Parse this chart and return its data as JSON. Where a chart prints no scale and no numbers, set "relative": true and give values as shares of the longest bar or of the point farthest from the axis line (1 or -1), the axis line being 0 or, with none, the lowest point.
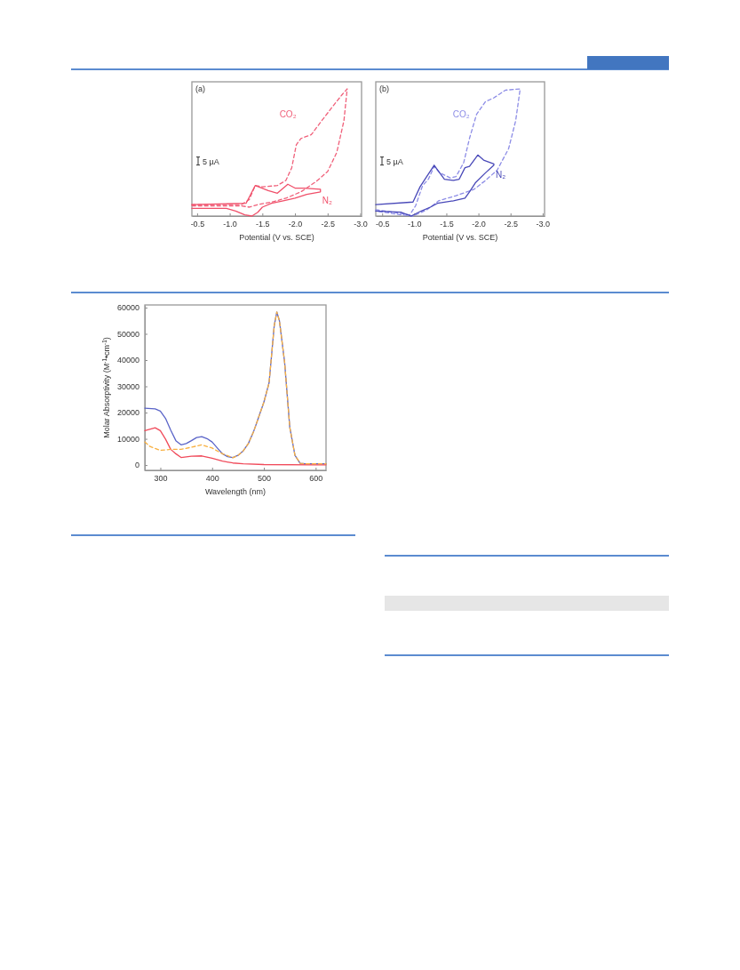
{
  "chart_data": [
    {
      "type": "line",
      "title": "(a)",
      "xlabel": "Potential (V vs. SCE)",
      "relative": true,
      "xlim": [
        -0.42,
        -3.02
      ],
      "xticks": [
        {
          "value": -0.5,
          "label": "-0.5"
        },
        {
          "value": -1,
          "label": "-1.0"
        },
        {
          "value": -1.5,
          "label": "-1.5"
        },
        {
          "value": -2,
          "label": "-2.0"
        },
        {
          "value": -2.5,
          "label": "-2.5"
        },
        {
          "value": -3,
          "label": "-3.0"
        }
      ],
      "annotations": [
        "5 µA"
      ],
      "series": [
        {
          "name": "CO₂",
          "color": "#f0607a",
          "line_style": "dashed",
          "x": [
            -0.42,
            -1.18,
            -1.3,
            -1.39,
            -1.5,
            -1.73,
            -1.86,
            -1.95,
            -2.02,
            -2.09,
            -2.25,
            -2.41,
            -2.59,
            -2.73,
            -2.8,
            -2.75,
            -2.64,
            -2.5,
            -2.32,
            -2.09,
            -1.86,
            -1.64,
            -1.43,
            -1.3,
            -1.18,
            -0.42
          ],
          "values": [
            0.09,
            0.09,
            0.13,
            0.24,
            0.23,
            0.24,
            0.28,
            0.38,
            0.56,
            0.61,
            0.64,
            0.75,
            0.87,
            0.96,
            1,
            0.75,
            0.5,
            0.35,
            0.27,
            0.19,
            0.14,
            0.11,
            0.09,
            0.07,
            0.08,
            0.08
          ]
        },
        {
          "name": "N₂",
          "color": "#f0506a",
          "x": [
            -0.42,
            -1.25,
            -1.39,
            -1.59,
            -1.73,
            -1.89,
            -2.0,
            -2.14,
            -2.39,
            -2.39,
            -2.18,
            -2.0,
            -1.82,
            -1.64,
            -1.5,
            -1.43,
            -1.34,
            -1.23,
            -1.09,
            -0.95,
            -0.73,
            -0.42
          ],
          "values": [
            0.09,
            0.1,
            0.24,
            0.2,
            0.18,
            0.25,
            0.22,
            0.22,
            0.21,
            0.19,
            0.17,
            0.14,
            0.12,
            0.1,
            0.07,
            0.03,
            0,
            0.01,
            0.04,
            0.06,
            0.06,
            0.06
          ]
        }
      ]
    },
    {
      "type": "line",
      "title": "(b)",
      "xlabel": "Potential (V vs. SCE)",
      "relative": true,
      "xlim": [
        -0.4,
        -3.03
      ],
      "xticks": [
        {
          "value": -0.5,
          "label": "-0.5"
        },
        {
          "value": -1,
          "label": "-1.0"
        },
        {
          "value": -1.5,
          "label": "-1.5"
        },
        {
          "value": -2,
          "label": "-2.0"
        },
        {
          "value": -2.5,
          "label": "-2.5"
        },
        {
          "value": -3,
          "label": "-3.0"
        }
      ],
      "annotations": [
        "5 µA"
      ],
      "series": [
        {
          "name": "CO₂",
          "color": "#8c8ce6",
          "line_style": "dashed",
          "x": [
            -0.4,
            -0.93,
            -1.02,
            -1.13,
            -1.22,
            -1.31,
            -1.4,
            -1.56,
            -1.65,
            -1.77,
            -1.86,
            -1.97,
            -2.11,
            -2.24,
            -2.42,
            -2.65,
            -2.58,
            -2.47,
            -2.29,
            -2.11,
            -1.93,
            -1.65,
            -1.38,
            -1.2,
            -0.98,
            -0.79,
            -0.4
          ],
          "values": [
            0.05,
            0.01,
            0.08,
            0.24,
            0.29,
            0.39,
            0.34,
            0.3,
            0.31,
            0.42,
            0.61,
            0.8,
            0.9,
            0.93,
            0.99,
            1,
            0.75,
            0.53,
            0.36,
            0.28,
            0.21,
            0.16,
            0.12,
            0.05,
            0,
            0.01,
            0.04
          ]
        },
        {
          "name": "N₂",
          "color": "#4848b8",
          "x": [
            -0.4,
            -0.98,
            -1.09,
            -1.18,
            -1.31,
            -1.38,
            -1.47,
            -1.61,
            -1.7,
            -1.79,
            -1.86,
            -1.99,
            -2.08,
            -2.24,
            -2.24,
            -2.11,
            -1.95,
            -1.86,
            -1.79,
            -1.61,
            -1.36,
            -1.25,
            -1.11,
            -0.95,
            -0.79,
            -0.4
          ],
          "values": [
            0.09,
            0.11,
            0.23,
            0.3,
            0.4,
            0.35,
            0.29,
            0.28,
            0.29,
            0.38,
            0.39,
            0.48,
            0.44,
            0.41,
            0.4,
            0.34,
            0.26,
            0.19,
            0.14,
            0.12,
            0.1,
            0.07,
            0.04,
            0,
            0.03,
            0.04
          ]
        }
      ]
    },
    {
      "type": "line",
      "xlabel": "Wavelength (nm)",
      "ylabel": "Molar Absorptivity (M$^{-1}$•cm$^{-1}$)",
      "xlim": [
        270,
        620
      ],
      "ylim": [
        -2000,
        61000
      ],
      "xticks": [
        300,
        400,
        500,
        600
      ],
      "yticks": [
        0,
        10000,
        20000,
        30000,
        40000,
        50000,
        60000
      ],
      "series": [
        {
          "color": "#5a64c8",
          "x": [
            270,
            290,
            300,
            310,
            320,
            330,
            340,
            350,
            360,
            370,
            380,
            390,
            400,
            410,
            420,
            430,
            440,
            450,
            460,
            470,
            480,
            490,
            500,
            510,
            520,
            525,
            530,
            540,
            550,
            560,
            570,
            580,
            600,
            620
          ],
          "values": [
            21700,
            21400,
            20600,
            17800,
            13300,
            9300,
            7700,
            8200,
            9300,
            10500,
            10800,
            10100,
            8800,
            6500,
            4300,
            3200,
            2900,
            3700,
            5400,
            8200,
            12700,
            18300,
            24000,
            31300,
            53200,
            58300,
            55000,
            39200,
            14400,
            3700,
            700,
            500,
            500,
            500
          ]
        },
        {
          "color": "#f04a5a",
          "x": [
            270,
            290,
            300,
            310,
            320,
            330,
            340,
            360,
            380,
            400,
            420,
            440,
            460,
            500,
            600,
            620
          ],
          "values": [
            13100,
            14200,
            13100,
            9900,
            6000,
            4300,
            2900,
            3400,
            3500,
            2600,
            1500,
            800,
            500,
            200,
            100,
            100
          ]
        },
        {
          "color": "#f8b040",
          "line_style": "dashed",
          "x": [
            270,
            280,
            300,
            320,
            340,
            360,
            380,
            400,
            420,
            440,
            450,
            460,
            470,
            480,
            490,
            500,
            510,
            520,
            525,
            530,
            540,
            550,
            560,
            570,
            580,
            600,
            620
          ],
          "values": [
            8800,
            7100,
            5600,
            6000,
            6000,
            6800,
            7700,
            6500,
            4300,
            2800,
            3700,
            5400,
            8200,
            12700,
            18300,
            24000,
            31300,
            53200,
            58300,
            55000,
            39200,
            14400,
            3700,
            700,
            500,
            500,
            500
          ]
        }
      ]
    }
  ]
}
